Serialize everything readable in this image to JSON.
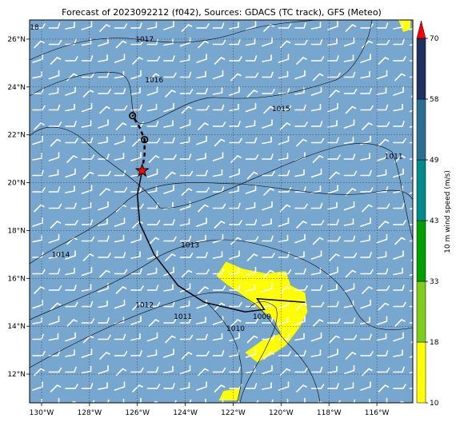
{
  "title": "Forecast of 2023092212 (f042), Sources: GDACS (TC track), GFS (Meteo)",
  "map": {
    "lon_range": [
      -130.5,
      -114.5
    ],
    "lat_range": [
      10.8,
      26.8
    ],
    "lon_ticks": [
      -130,
      -128,
      -126,
      -124,
      -122,
      -120,
      -118,
      -116
    ],
    "lat_ticks": [
      12,
      14,
      16,
      18,
      20,
      22,
      24,
      26
    ],
    "lon_tick_labels": [
      "130°W",
      "128°W",
      "126°W",
      "124°W",
      "122°W",
      "120°W",
      "118°W",
      "116°W"
    ],
    "lat_tick_labels": [
      "12°N",
      "14°N",
      "16°N",
      "18°N",
      "20°N",
      "22°N",
      "24°N",
      "26°N"
    ],
    "grid": true,
    "background_color": "#77a6cf"
  },
  "colorbar": {
    "label": "10 m wind speed (m/s)",
    "levels": [
      10,
      18,
      33,
      43,
      49,
      58,
      70
    ],
    "level_labels": [
      "10",
      "18",
      "33",
      "43",
      "49",
      "58",
      "70"
    ],
    "colors": [
      "#ffff00",
      "#7fcc1a",
      "#00a000",
      "#008b8b",
      "#2a6f8f",
      "#203060",
      "#ff0000"
    ],
    "extend": "max"
  },
  "isobars": [
    {
      "label": "1017",
      "label_at": [
        -125.7,
        25.9
      ]
    },
    {
      "label": "1016",
      "label_at": [
        -125.3,
        24.2
      ]
    },
    {
      "label": "1015",
      "label_at": [
        -120.0,
        23.0
      ]
    },
    {
      "label": "1014",
      "label_at": [
        -129.2,
        16.9
      ]
    },
    {
      "label": "1013",
      "label_at": [
        -123.8,
        17.3
      ]
    },
    {
      "label": "1012",
      "label_at": [
        -125.7,
        14.8
      ]
    },
    {
      "label": "1011",
      "label_at": [
        -124.1,
        14.3
      ]
    },
    {
      "label": "1010",
      "label_at": [
        -121.9,
        13.8
      ]
    },
    {
      "label": "1009",
      "label_at": [
        -120.8,
        14.3
      ]
    },
    {
      "label": "1011",
      "label_at": [
        -115.3,
        21.0
      ]
    },
    {
      "label": "18",
      "label_at": [
        -130.3,
        26.4
      ]
    }
  ],
  "tc_track": {
    "observed": [
      [
        -119.0,
        15.0
      ],
      [
        -121.0,
        15.15
      ],
      [
        -120.7,
        14.7
      ],
      [
        -121.5,
        14.6
      ],
      [
        -123.2,
        15.0
      ],
      [
        -124.3,
        15.7
      ],
      [
        -125.3,
        17.0
      ],
      [
        -125.9,
        18.3
      ],
      [
        -126.0,
        19.5
      ],
      [
        -125.8,
        20.5
      ]
    ],
    "forecast": [
      [
        -125.8,
        20.5
      ],
      [
        -125.7,
        21.2
      ],
      [
        -125.7,
        21.8
      ],
      [
        -125.9,
        22.3
      ],
      [
        -126.2,
        22.8
      ]
    ],
    "forecast_points": [
      [
        -125.7,
        21.8
      ],
      [
        -126.2,
        22.8
      ]
    ],
    "current_position": [
      -125.8,
      20.5
    ],
    "track_color": "#000000",
    "marker_color": "#ff0000"
  },
  "wind_speed_patches": [
    {
      "color": "#ffff00",
      "level_min": 10,
      "polygon": [
        [
          -122.7,
          16.1
        ],
        [
          -122.3,
          16.7
        ],
        [
          -121.6,
          16.4
        ],
        [
          -120.6,
          16.2
        ],
        [
          -119.8,
          16.3
        ],
        [
          -119.6,
          15.7
        ],
        [
          -119.0,
          15.4
        ],
        [
          -118.9,
          14.6
        ],
        [
          -119.2,
          14.0
        ],
        [
          -119.8,
          13.2
        ],
        [
          -120.4,
          12.8
        ],
        [
          -121.0,
          12.5
        ],
        [
          -121.5,
          12.9
        ],
        [
          -120.8,
          13.4
        ],
        [
          -120.0,
          13.7
        ],
        [
          -120.3,
          14.3
        ],
        [
          -121.0,
          14.8
        ],
        [
          -121.6,
          15.3
        ],
        [
          -122.2,
          15.7
        ]
      ]
    },
    {
      "color": "#ffff00",
      "level_min": 10,
      "polygon": [
        [
          -122.6,
          10.9
        ],
        [
          -122.4,
          11.3
        ],
        [
          -121.7,
          11.4
        ],
        [
          -121.8,
          10.9
        ]
      ]
    },
    {
      "color": "#ffff00",
      "level_min": 10,
      "polygon": [
        [
          -115.1,
          26.8
        ],
        [
          -114.9,
          26.3
        ],
        [
          -114.6,
          26.4
        ],
        [
          -114.6,
          26.8
        ]
      ]
    }
  ]
}
